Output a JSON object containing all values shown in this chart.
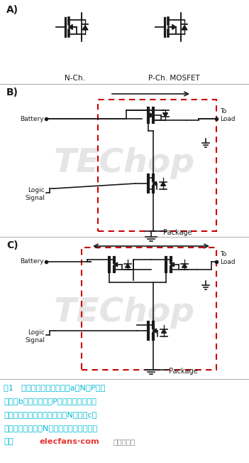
{
  "title_A": "A)",
  "title_B": "B)",
  "title_C": "C)",
  "label_nch": "N-Ch.",
  "label_pch": "P-Ch. MOSFET",
  "label_battery": "Battery",
  "label_toload": "To\nLoad",
  "label_logic": "Logic\nSignal",
  "label_package": "Package",
  "caption_line1": "圖1   傳統負載開關表現顯示a）N和P溝道",
  "caption_line2": "描述，b）在高側、由P溝道組成的簡單負",
  "caption_line3": "載開關與通過邏輯信號驅動的N溝道，c）",
  "caption_line4": "當不啟用時高側雙N溝道提供了二極體電流",
  "caption_line5": "阻斷",
  "caption_elec": "elecfans·com",
  "caption_chinese": "电子发烧友",
  "bg_color": "#ffffff",
  "caption_color": "#00bcd4",
  "elec_color": "#e53935",
  "chinese_site_color": "#888888",
  "dashed_box_color": "#cc0000",
  "circuit_color": "#1a1a1a",
  "section_line_color": "#aaaaaa",
  "watermark_color": "#cccccc"
}
